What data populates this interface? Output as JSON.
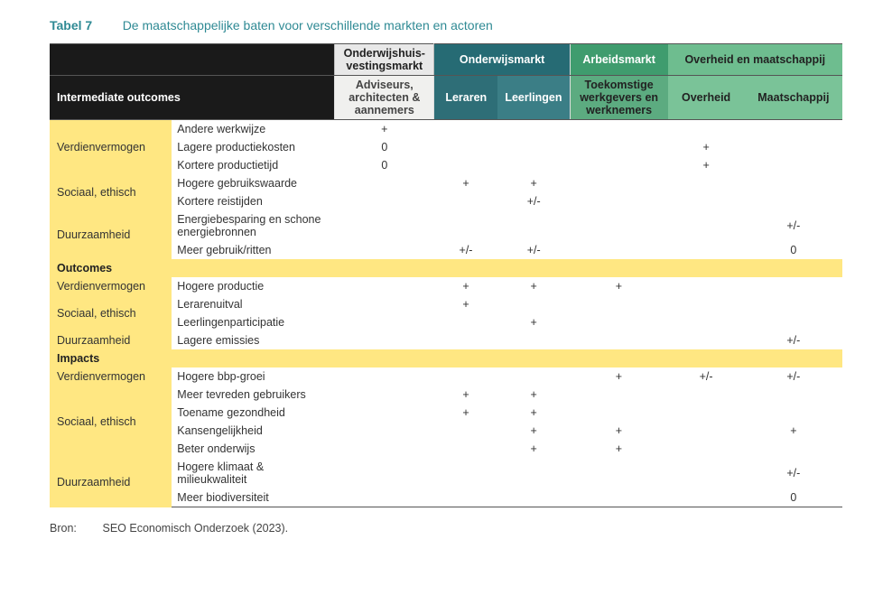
{
  "table_label": "Tabel 7",
  "table_caption": "De maatschappelijke baten voor verschillende markten en actoren",
  "group_headers": [
    "Onderwijshuis-vestingsmarkt",
    "Onderwijsmarkt",
    "Arbeidsmarkt",
    "Overheid en maatschappij"
  ],
  "sub_headers": [
    "Adviseurs, architecten & aannemers",
    "Leraren",
    "Leerlingen",
    "Toekomstige werkgevers en werknemers",
    "Overheid",
    "Maatschappij"
  ],
  "section1": "Intermediate outcomes",
  "section2": "Outcomes",
  "section3": "Impacts",
  "cats": {
    "verdien": "Verdienvermogen",
    "sociaal": "Sociaal, ethisch",
    "duur": "Duurzaamheid"
  },
  "rows_intermediate": [
    {
      "cat": "verdien",
      "catspan": 3,
      "item": "Andere werkwijze",
      "v": [
        "+",
        "",
        "",
        "",
        "",
        ""
      ]
    },
    {
      "cat": "",
      "item": "Lagere productiekosten",
      "v": [
        "0",
        "",
        "",
        "",
        "+",
        ""
      ]
    },
    {
      "cat": "",
      "item": "Kortere productietijd",
      "v": [
        "0",
        "",
        "",
        "",
        "+",
        ""
      ]
    },
    {
      "cat": "sociaal",
      "catspan": 2,
      "item": "Hogere gebruikswaarde",
      "v": [
        "",
        "+",
        "+",
        "",
        "",
        ""
      ]
    },
    {
      "cat": "",
      "item": "Kortere reistijden",
      "v": [
        "",
        "",
        "+/-",
        "",
        "",
        ""
      ]
    },
    {
      "cat": "duur",
      "catspan": 2,
      "item": "Energiebesparing en schone energiebronnen",
      "v": [
        "",
        "",
        "",
        "",
        "",
        "+/-"
      ]
    },
    {
      "cat": "",
      "item": "Meer gebruik/ritten",
      "v": [
        "",
        "+/-",
        "+/-",
        "",
        "",
        "0"
      ]
    }
  ],
  "rows_outcomes": [
    {
      "cat": "verdien",
      "catspan": 1,
      "item": "Hogere productie",
      "v": [
        "",
        "+",
        "+",
        "+",
        "",
        ""
      ]
    },
    {
      "cat": "sociaal",
      "catspan": 2,
      "item": "Lerarenuitval",
      "v": [
        "",
        "+",
        "",
        "",
        "",
        ""
      ]
    },
    {
      "cat": "",
      "item": "Leerlingenparticipatie",
      "v": [
        "",
        "",
        "+",
        "",
        "",
        ""
      ]
    },
    {
      "cat": "duur",
      "catspan": 1,
      "item": "Lagere emissies",
      "v": [
        "",
        "",
        "",
        "",
        "",
        "+/-"
      ]
    }
  ],
  "rows_impacts": [
    {
      "cat": "verdien",
      "catspan": 1,
      "item": "Hogere bbp-groei",
      "v": [
        "",
        "",
        "",
        "+",
        "+/-",
        "+/-"
      ]
    },
    {
      "cat": "sociaal",
      "catspan": 4,
      "item": "Meer tevreden gebruikers",
      "v": [
        "",
        "+",
        "+",
        "",
        "",
        ""
      ]
    },
    {
      "cat": "",
      "item": "Toename gezondheid",
      "v": [
        "",
        "+",
        "+",
        "",
        "",
        ""
      ]
    },
    {
      "cat": "",
      "item": "Kansengelijkheid",
      "v": [
        "",
        "",
        "+",
        "+",
        "",
        "+"
      ]
    },
    {
      "cat": "",
      "item": "Beter onderwijs",
      "v": [
        "",
        "",
        "+",
        "+",
        "",
        ""
      ]
    },
    {
      "cat": "duur",
      "catspan": 2,
      "item": "Hogere klimaat & milieukwaliteit",
      "v": [
        "",
        "",
        "",
        "",
        "",
        "+/-"
      ]
    },
    {
      "cat": "",
      "item": "Meer biodiversiteit",
      "v": [
        "",
        "",
        "",
        "",
        "",
        "0"
      ]
    }
  ],
  "source_label": "Bron:",
  "source_text": "SEO Economisch Onderzoek (2023).",
  "colors": {
    "accent_teal": "#2f8a94",
    "yellow": "#ffe782",
    "dark": "#1a1a1a",
    "grey": "#e8e8e8",
    "teal_head": "#266b74",
    "green_head1": "#3f9c6e",
    "green_head2": "#6ebd8f"
  }
}
